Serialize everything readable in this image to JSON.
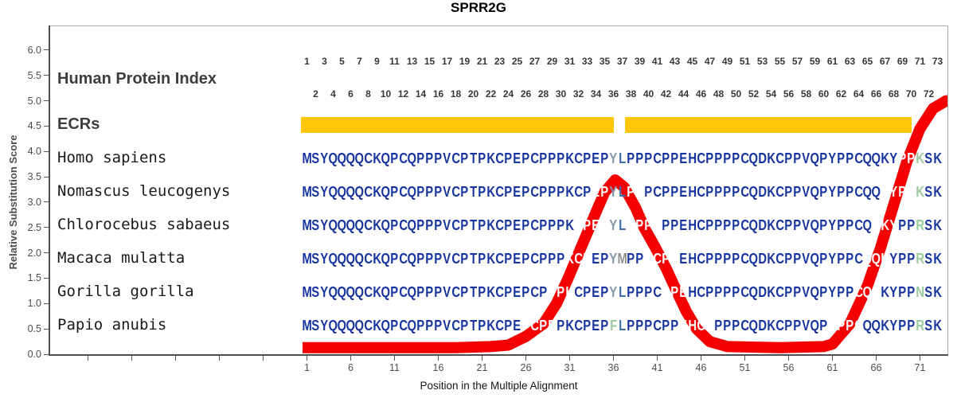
{
  "title": "SPRR2G",
  "y_axis": {
    "title": "Relative Substitution Score",
    "tick_labels": [
      "6.0",
      "5.5",
      "5.0",
      "4.5",
      "4.0",
      "3.5",
      "3.0",
      "2.5",
      "2.0",
      "1.5",
      "1.0",
      "0.5",
      "0.0"
    ]
  },
  "x_axis": {
    "title": "Position in the Multiple Alignment",
    "tick_positions": [
      1,
      6,
      11,
      16,
      21,
      26,
      31,
      36,
      41,
      46,
      51,
      56,
      61,
      66,
      71
    ]
  },
  "index_header": {
    "label": "Human Protein Index",
    "numbers": [
      1,
      2,
      3,
      4,
      5,
      6,
      7,
      8,
      9,
      10,
      11,
      12,
      13,
      14,
      15,
      16,
      17,
      18,
      19,
      20,
      21,
      22,
      23,
      24,
      25,
      26,
      27,
      28,
      29,
      30,
      31,
      32,
      33,
      34,
      35,
      36,
      37,
      38,
      39,
      40,
      41,
      42,
      43,
      44,
      45,
      46,
      47,
      48,
      49,
      50,
      51,
      52,
      53,
      54,
      55,
      56,
      57,
      58,
      59,
      60,
      61,
      62,
      63,
      64,
      65,
      66,
      67,
      68,
      69,
      70,
      71,
      72,
      73
    ]
  },
  "ecr": {
    "label": "ECRs",
    "bars": [
      {
        "from": 1,
        "to": 36
      },
      {
        "from": 38,
        "to": 70
      }
    ]
  },
  "alignment": {
    "rows": [
      {
        "name": "Homo sapiens",
        "seq": "MSYQQQQCKQPCQPPPVCPTPKCPEPCPPPKCPEPYLPPPCPPEHCPPPPCQDKCPPVQPYPPCQQKYPPKSK",
        "overrides": {
          "36": "slate",
          "37": "steel",
          "71": "green"
        }
      },
      {
        "name": "Nomascus leucogenys",
        "seq": "MSYQQQQCKQPCQPPPVCPTPKCPEPCPPPKCPEPYLPPPCPPEHCPPPPCQDKCPPVQPYPPCQQKYPPKSK",
        "overrides": {
          "36": "slate",
          "37": "steel",
          "71": "green"
        }
      },
      {
        "name": "Chlorocebus sabaeus",
        "seq": "MSYQQQQCKQPCQPPPVCPTPKCPEPCPPPKCPEPYLPPPCPPEHCPPPPCQDKCPPVQPYPPCQQKYPPRSK",
        "overrides": {
          "36": "slate",
          "37": "steel",
          "71": "green"
        }
      },
      {
        "name": "Macaca mulatta",
        "seq": "MSYQQQQCKQPCQPPPVCPTPKCPEPCPPPKCPEPYMPPPCPPEHCPPPPCQDKCPPVQPYPPCQQKYPPRSK",
        "overrides": {
          "36": "slate",
          "37": "gray",
          "71": "green"
        }
      },
      {
        "name": "Gorilla gorilla",
        "seq": "MSYQQQQCKQPCQPPPVCPTPKCPEPCPPPKCPEPYLPPPCPPEHCPPPPCQDKCPPVQPYPPCQQKYPPNSK",
        "overrides": {
          "36": "slate",
          "37": "steel",
          "71": "green"
        }
      },
      {
        "name": "Papio anubis",
        "seq": "MSYQQQQCKQPCQPPPVCPTPKCPEPCPPPKCPEPFLPPPCPPEHCPPPPCQDKCPPVQPYPPCQQKYPPRSK",
        "overrides": {
          "36": "green",
          "37": "steel",
          "71": "green"
        }
      }
    ]
  },
  "colors": {
    "sequence": "#17349e",
    "slate": "#8296ab",
    "steel": "#3f6fa8",
    "gray": "#909090",
    "green": "#9bca9b",
    "knockout": "#ffffff",
    "ecr": "#ffc60a",
    "curve": "#f40000"
  },
  "chart_data": {
    "type": "line",
    "title": "SPRR2G",
    "xlabel": "Position in the Multiple Alignment",
    "ylabel": "Relative Substitution Score",
    "xlim": [
      0,
      76
    ],
    "ylim": [
      0,
      6
    ],
    "grid": false,
    "series": [
      {
        "name": "Relative Substitution Score",
        "points": [
          [
            0.5,
            0.13
          ],
          [
            10,
            0.13
          ],
          [
            18,
            0.13
          ],
          [
            22,
            0.15
          ],
          [
            24,
            0.18
          ],
          [
            26,
            0.35
          ],
          [
            28,
            0.6
          ],
          [
            29.5,
            1.0
          ],
          [
            30.7,
            1.45
          ],
          [
            31.8,
            1.9
          ],
          [
            32.9,
            2.35
          ],
          [
            34,
            2.8
          ],
          [
            35,
            3.2
          ],
          [
            36.2,
            3.44
          ],
          [
            37.2,
            3.3
          ],
          [
            38.5,
            2.9
          ],
          [
            39.5,
            2.5
          ],
          [
            40.8,
            2.1
          ],
          [
            42,
            1.7
          ],
          [
            43.2,
            1.25
          ],
          [
            44.3,
            0.85
          ],
          [
            45.5,
            0.5
          ],
          [
            47,
            0.25
          ],
          [
            49,
            0.15
          ],
          [
            55,
            0.13
          ],
          [
            60,
            0.15
          ],
          [
            61,
            0.2
          ],
          [
            63,
            0.6
          ],
          [
            65,
            1.35
          ],
          [
            66.5,
            2.1
          ],
          [
            68,
            2.95
          ],
          [
            69.5,
            3.8
          ],
          [
            71,
            4.45
          ],
          [
            72.5,
            4.85
          ],
          [
            74,
            5.0
          ],
          [
            75.5,
            5.02
          ]
        ]
      }
    ]
  }
}
